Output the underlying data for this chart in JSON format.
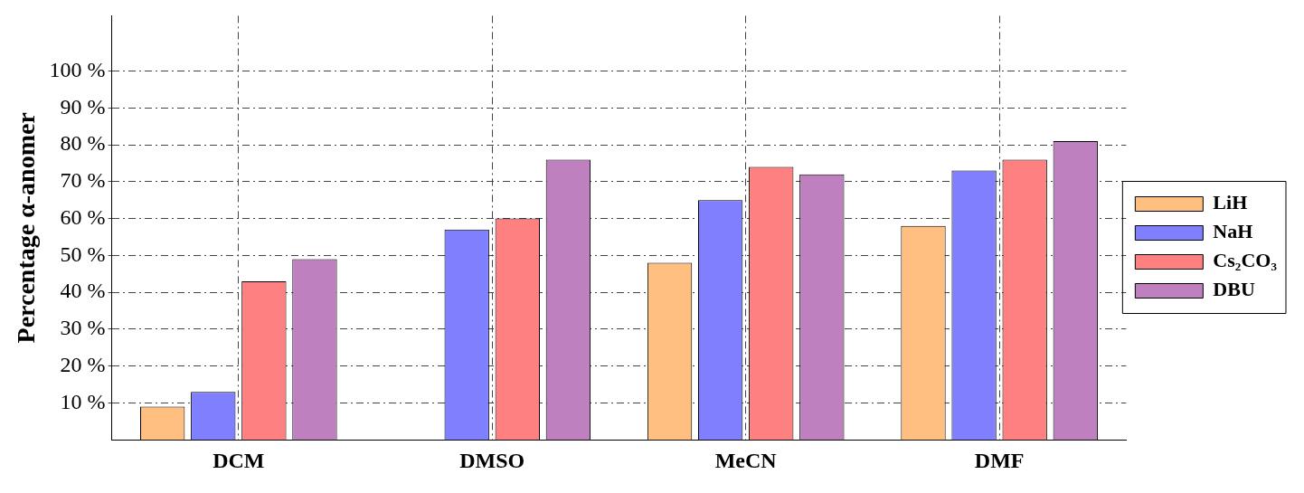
{
  "chart_data": {
    "type": "bar",
    "ylabel": "Percentage α-anomer",
    "categories": [
      "DCM",
      "DMSO",
      "MeCN",
      "DMF"
    ],
    "series": [
      {
        "name": "LiH",
        "color": "#ffbf80",
        "values": [
          9,
          0,
          48,
          58
        ]
      },
      {
        "name": "NaH",
        "color": "#8080ff",
        "values": [
          13,
          57,
          65,
          73
        ]
      },
      {
        "name": "Cs₂CO₃",
        "color": "#ff8080",
        "values": [
          43,
          60,
          74,
          76
        ]
      },
      {
        "name": "DBU",
        "color": "#bf80bf",
        "values": [
          49,
          76,
          72,
          81
        ]
      }
    ],
    "ylim": [
      0,
      115
    ],
    "yticks": [
      {
        "value": 10,
        "label": "10 %"
      },
      {
        "value": 20,
        "label": "20 %"
      },
      {
        "value": 30,
        "label": "30 %"
      },
      {
        "value": 40,
        "label": "40 %"
      },
      {
        "value": 50,
        "label": "50 %"
      },
      {
        "value": 60,
        "label": "60 %"
      },
      {
        "value": 70,
        "label": "70 %"
      },
      {
        "value": 80,
        "label": "80 %"
      },
      {
        "value": 90,
        "label": "90 %"
      },
      {
        "value": 100,
        "label": "100 %"
      }
    ],
    "grid": true,
    "legend": "right"
  }
}
